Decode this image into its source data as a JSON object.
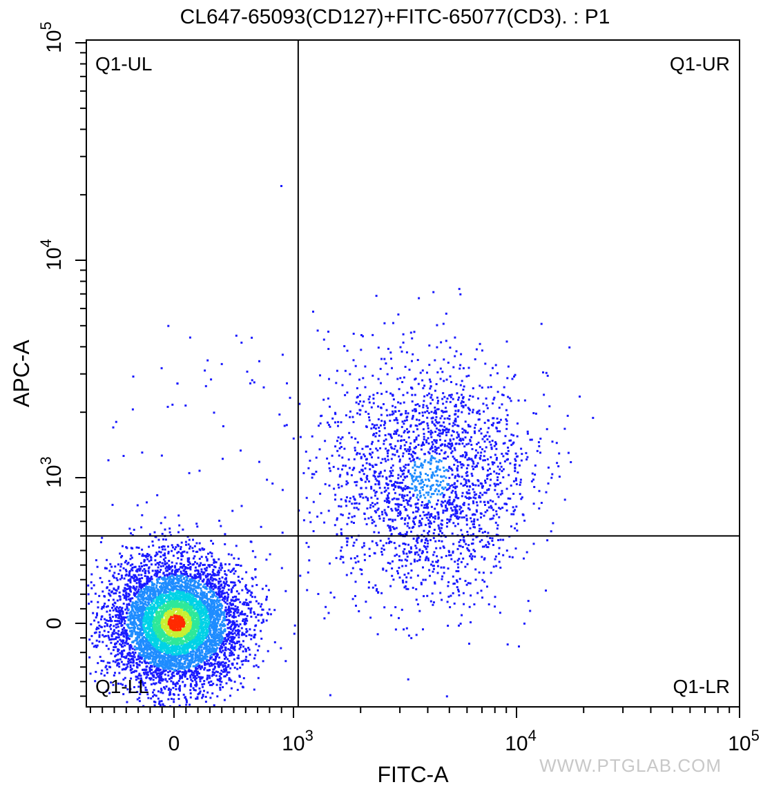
{
  "chart_data": {
    "type": "scatter",
    "title": "CL647-65093(CD127)+FITC-65077(CD3). : P1",
    "xlabel": "FITC-A",
    "ylabel": "APC-A",
    "x_scale": "biexponential",
    "y_scale": "biexponential",
    "x_ticks": [
      {
        "value": 0,
        "base": "0",
        "exp": ""
      },
      {
        "value": 1000,
        "base": "10",
        "exp": "3"
      },
      {
        "value": 10000,
        "base": "10",
        "exp": "4"
      },
      {
        "value": 100000,
        "base": "10",
        "exp": "5"
      }
    ],
    "y_ticks": [
      {
        "value": 0,
        "base": "0",
        "exp": ""
      },
      {
        "value": 1000,
        "base": "10",
        "exp": "3"
      },
      {
        "value": 10000,
        "base": "10",
        "exp": "4"
      },
      {
        "value": 100000,
        "base": "10",
        "exp": "5"
      }
    ],
    "gate_lines": {
      "x": 1050,
      "y": 600
    },
    "quadrants": [
      {
        "label": "Q1-UL",
        "position": "top-left"
      },
      {
        "label": "Q1-UR",
        "position": "top-right"
      },
      {
        "label": "Q1-LL",
        "position": "bottom-left"
      },
      {
        "label": "Q1-LR",
        "position": "bottom-right"
      }
    ],
    "populations": [
      {
        "name": "",
        "x_center": 10,
        "y_center": 10,
        "approx_events": 6000
      },
      {
        "name": "",
        "x_center": 4000,
        "y_center": 1000,
        "approx_events": 2200
      }
    ],
    "density_colors": [
      "#1a1aff",
      "#1f8cff",
      "#00d2e6",
      "#2ee89a",
      "#c8f032",
      "#ff2a00"
    ],
    "grid": false
  },
  "watermark": "WWW.PTGLAB.COM"
}
